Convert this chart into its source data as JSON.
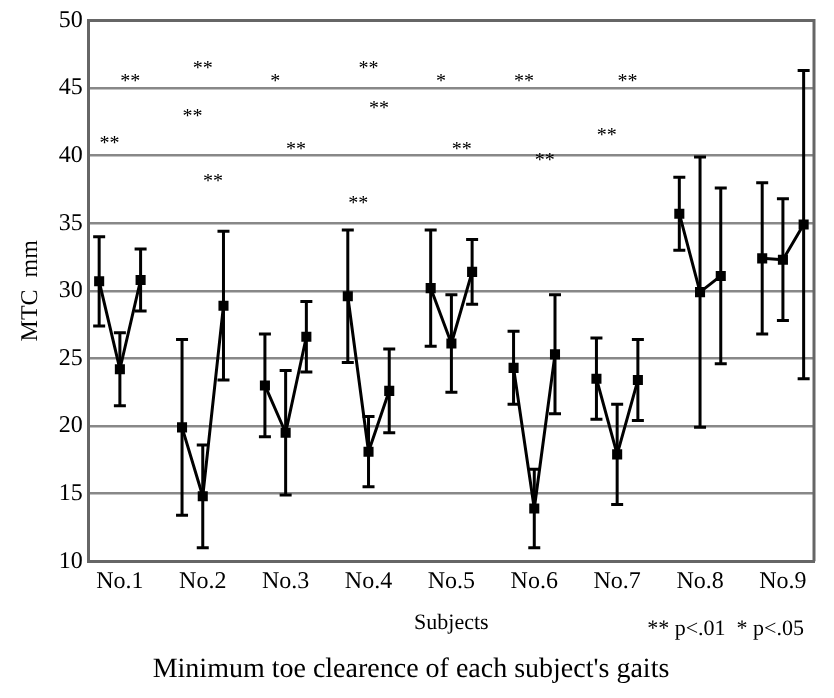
{
  "chart_data": {
    "type": "line",
    "title": "Minimum toe clearence of each subject's gaits",
    "xlabel": "Subjects",
    "ylabel": "MTC  mm",
    "categories": [
      null,
      "No.1",
      null,
      null,
      null,
      "No.2",
      null,
      null,
      null,
      "No.3",
      null,
      null,
      null,
      "No.4",
      null,
      null,
      null,
      "No.5",
      null,
      null,
      null,
      "No.6",
      null,
      null,
      null,
      "No.7",
      null,
      null,
      null,
      "No.8",
      null,
      null,
      null,
      "No.9",
      null
    ],
    "ylim": [
      10,
      50
    ],
    "yticks": [
      10,
      15,
      20,
      25,
      30,
      35,
      40,
      45,
      50
    ],
    "grid": "y",
    "marker": "square",
    "line_style": "solid",
    "series": [
      {
        "color": "#000000",
        "values": [
          30.7,
          24.2,
          30.8,
          null,
          null,
          null,
          null,
          null,
          null,
          null,
          null,
          null,
          null,
          null,
          null,
          null,
          null,
          null,
          null,
          null,
          null,
          null,
          null,
          null,
          null,
          null,
          null,
          null,
          null,
          null,
          null,
          null,
          null,
          null,
          null
        ],
        "errors": [
          3.3,
          2.7,
          2.3,
          null,
          null,
          null,
          null,
          null,
          null,
          null,
          null,
          null,
          null,
          null,
          null,
          null,
          null,
          null,
          null,
          null,
          null,
          null,
          null,
          null,
          null,
          null,
          null,
          null,
          null,
          null,
          null,
          null,
          null,
          null,
          null
        ]
      },
      {
        "color": "#000000",
        "values": [
          null,
          null,
          null,
          null,
          19.9,
          14.8,
          28.9,
          null,
          null,
          null,
          null,
          null,
          null,
          null,
          null,
          null,
          null,
          null,
          null,
          null,
          null,
          null,
          null,
          null,
          null,
          null,
          null,
          null,
          null,
          null,
          null,
          null,
          null,
          null,
          null
        ],
        "errors": [
          null,
          null,
          null,
          null,
          6.5,
          3.8,
          5.5,
          null,
          null,
          null,
          null,
          null,
          null,
          null,
          null,
          null,
          null,
          null,
          null,
          null,
          null,
          null,
          null,
          null,
          null,
          null,
          null,
          null,
          null,
          null,
          null,
          null,
          null,
          null,
          null
        ]
      },
      {
        "color": "#000000",
        "values": [
          null,
          null,
          null,
          null,
          null,
          null,
          null,
          null,
          23,
          19.5,
          26.6,
          null,
          null,
          null,
          null,
          null,
          null,
          null,
          null,
          null,
          null,
          null,
          null,
          null,
          null,
          null,
          null,
          null,
          null,
          null,
          null,
          null,
          null,
          null,
          null
        ],
        "errors": [
          null,
          null,
          null,
          null,
          null,
          null,
          null,
          null,
          3.8,
          4.6,
          2.6,
          null,
          null,
          null,
          null,
          null,
          null,
          null,
          null,
          null,
          null,
          null,
          null,
          null,
          null,
          null,
          null,
          null,
          null,
          null,
          null,
          null,
          null,
          null,
          null
        ]
      },
      {
        "color": "#000000",
        "values": [
          null,
          null,
          null,
          null,
          null,
          null,
          null,
          null,
          null,
          null,
          null,
          null,
          29.6,
          18.1,
          22.6,
          null,
          null,
          null,
          null,
          null,
          null,
          null,
          null,
          null,
          null,
          null,
          null,
          null,
          null,
          null,
          null,
          null,
          null,
          null,
          null
        ],
        "errors": [
          null,
          null,
          null,
          null,
          null,
          null,
          null,
          null,
          null,
          null,
          null,
          null,
          4.9,
          2.6,
          3.1,
          null,
          null,
          null,
          null,
          null,
          null,
          null,
          null,
          null,
          null,
          null,
          null,
          null,
          null,
          null,
          null,
          null,
          null,
          null,
          null
        ]
      },
      {
        "color": "#000000",
        "values": [
          null,
          null,
          null,
          null,
          null,
          null,
          null,
          null,
          null,
          null,
          null,
          null,
          null,
          null,
          null,
          null,
          30.2,
          26.1,
          31.4,
          null,
          null,
          null,
          null,
          null,
          null,
          null,
          null,
          null,
          null,
          null,
          null,
          null,
          null,
          null,
          null
        ],
        "errors": [
          null,
          null,
          null,
          null,
          null,
          null,
          null,
          null,
          null,
          null,
          null,
          null,
          null,
          null,
          null,
          null,
          4.3,
          3.6,
          2.4,
          null,
          null,
          null,
          null,
          null,
          null,
          null,
          null,
          null,
          null,
          null,
          null,
          null,
          null,
          null,
          null
        ]
      },
      {
        "color": "#000000",
        "values": [
          null,
          null,
          null,
          null,
          null,
          null,
          null,
          null,
          null,
          null,
          null,
          null,
          null,
          null,
          null,
          null,
          null,
          null,
          null,
          null,
          24.3,
          13.9,
          25.3,
          null,
          null,
          null,
          null,
          null,
          null,
          null,
          null,
          null,
          null,
          null,
          null
        ],
        "errors": [
          null,
          null,
          null,
          null,
          null,
          null,
          null,
          null,
          null,
          null,
          null,
          null,
          null,
          null,
          null,
          null,
          null,
          null,
          null,
          null,
          2.7,
          2.9,
          4.4,
          null,
          null,
          null,
          null,
          null,
          null,
          null,
          null,
          null,
          null,
          null,
          null
        ]
      },
      {
        "color": "#000000",
        "values": [
          null,
          null,
          null,
          null,
          null,
          null,
          null,
          null,
          null,
          null,
          null,
          null,
          null,
          null,
          null,
          null,
          null,
          null,
          null,
          null,
          null,
          null,
          null,
          null,
          23.5,
          17.9,
          23.4,
          null,
          null,
          null,
          null,
          null,
          null,
          null,
          null
        ],
        "errors": [
          null,
          null,
          null,
          null,
          null,
          null,
          null,
          null,
          null,
          null,
          null,
          null,
          null,
          null,
          null,
          null,
          null,
          null,
          null,
          null,
          null,
          null,
          null,
          null,
          3,
          3.7,
          3,
          null,
          null,
          null,
          null,
          null,
          null,
          null,
          null
        ]
      },
      {
        "color": "#000000",
        "values": [
          null,
          null,
          null,
          null,
          null,
          null,
          null,
          null,
          null,
          null,
          null,
          null,
          null,
          null,
          null,
          null,
          null,
          null,
          null,
          null,
          null,
          null,
          null,
          null,
          null,
          null,
          null,
          null,
          35.7,
          29.9,
          31.1,
          null,
          null,
          null,
          null
        ],
        "errors": [
          null,
          null,
          null,
          null,
          null,
          null,
          null,
          null,
          null,
          null,
          null,
          null,
          null,
          null,
          null,
          null,
          null,
          null,
          null,
          null,
          null,
          null,
          null,
          null,
          null,
          null,
          null,
          null,
          2.7,
          10,
          6.5,
          null,
          null,
          null,
          null
        ]
      },
      {
        "color": "#000000",
        "values": [
          null,
          null,
          null,
          null,
          null,
          null,
          null,
          null,
          null,
          null,
          null,
          null,
          null,
          null,
          null,
          null,
          null,
          null,
          null,
          null,
          null,
          null,
          null,
          null,
          null,
          null,
          null,
          null,
          null,
          null,
          null,
          null,
          32.4,
          32.3,
          34.9
        ],
        "errors": [
          null,
          null,
          null,
          null,
          null,
          null,
          null,
          null,
          null,
          null,
          null,
          null,
          null,
          null,
          null,
          null,
          null,
          null,
          null,
          null,
          null,
          null,
          null,
          null,
          null,
          null,
          null,
          null,
          null,
          null,
          null,
          null,
          5.6,
          4.5,
          11.4
        ]
      }
    ],
    "annotations": [
      "**",
      "**",
      "**",
      "**",
      "**",
      "*",
      "**",
      "**",
      "**",
      "**",
      "*",
      "**",
      "**",
      "**",
      "**",
      "**",
      "** p<.01  * p<.05"
    ]
  }
}
